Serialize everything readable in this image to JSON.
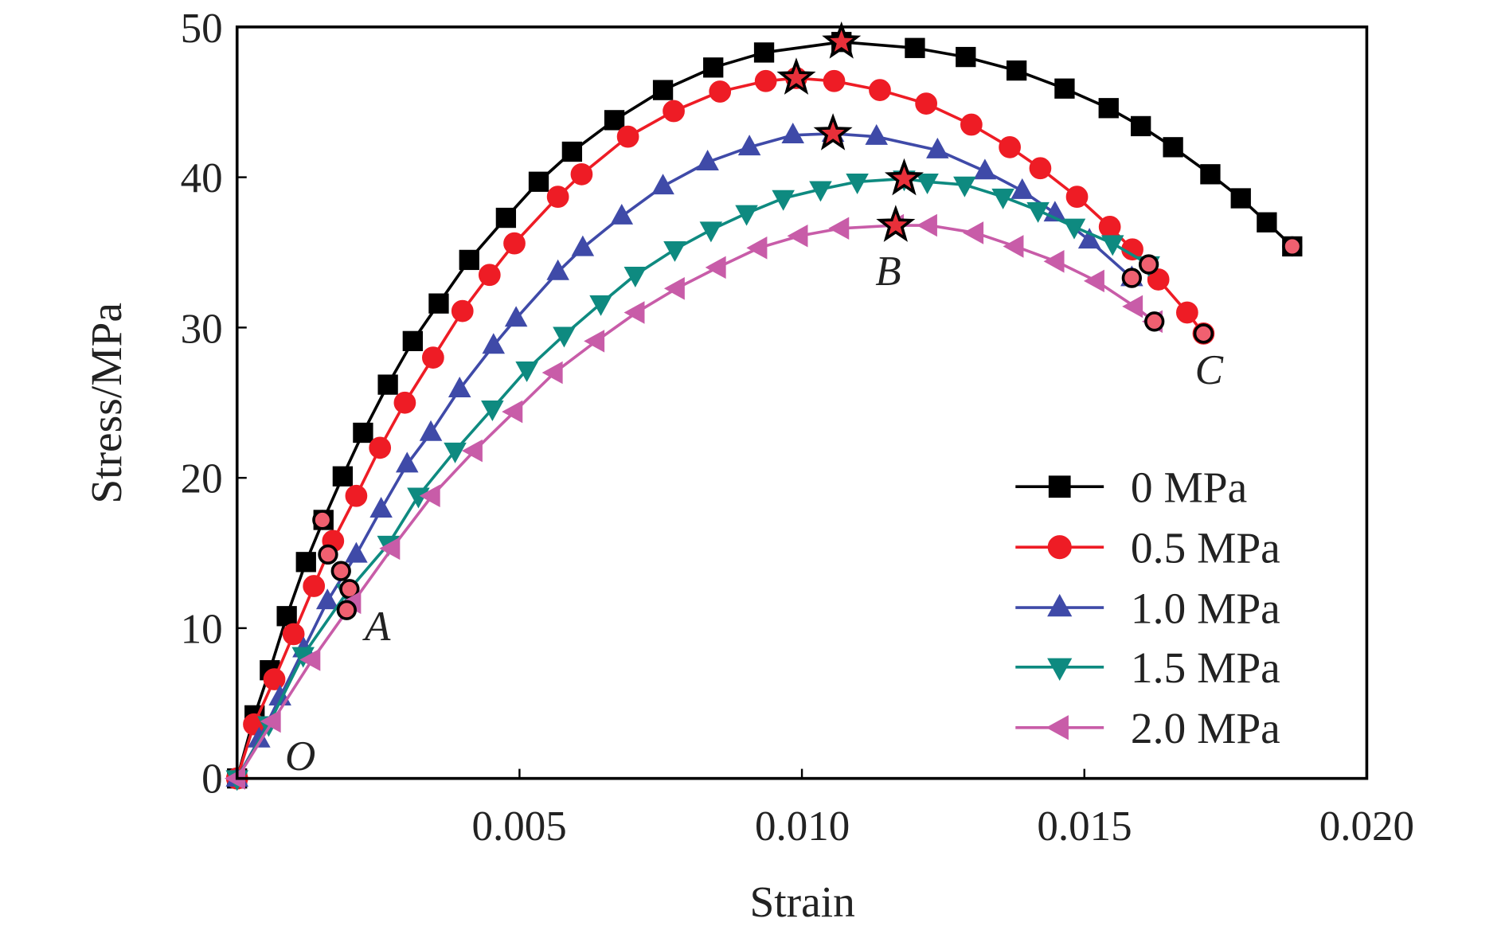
{
  "chart_data": {
    "type": "line",
    "xlabel": "Strain",
    "ylabel": "Stress/MPa",
    "xlim": [
      0,
      0.02
    ],
    "ylim": [
      0,
      50
    ],
    "xticks": [
      "0.005",
      "0.010",
      "0.015",
      "0.020"
    ],
    "xtick_values": [
      0.005,
      0.01,
      0.015,
      0.02
    ],
    "yticks": [
      "0",
      "10",
      "20",
      "30",
      "40",
      "50"
    ],
    "ytick_values": [
      0,
      10,
      20,
      30,
      40,
      50
    ],
    "grid": false,
    "legend_position": "bottom-right",
    "annotations": [
      {
        "text": "O",
        "x": 0.0012,
        "y": 1.5
      },
      {
        "text": "A",
        "x": 0.0026,
        "y": 10.2
      },
      {
        "text": "B",
        "x": 0.0116,
        "y": 33.6
      },
      {
        "text": "C",
        "x": 0.0173,
        "y": 27.0
      }
    ],
    "series": [
      {
        "name": "0 MPa",
        "color": "#000000",
        "marker": "square",
        "x": [
          0,
          0.00031,
          0.00058,
          0.00088,
          0.00122,
          0.00153,
          0.00187,
          0.00223,
          0.00267,
          0.00311,
          0.00357,
          0.00411,
          0.00476,
          0.00534,
          0.00593,
          0.00668,
          0.00754,
          0.00843,
          0.00933,
          0.0107,
          0.012,
          0.0129,
          0.0138,
          0.01465,
          0.01543,
          0.016,
          0.01657,
          0.01723,
          0.01777,
          0.01823,
          0.01868
        ],
        "y": [
          0,
          4.2,
          7.2,
          10.8,
          14.4,
          17.2,
          20.1,
          23.0,
          26.2,
          29.1,
          31.6,
          34.5,
          37.3,
          39.7,
          41.7,
          43.8,
          45.8,
          47.3,
          48.3,
          49.0,
          48.6,
          48.0,
          47.1,
          45.9,
          44.6,
          43.4,
          42.0,
          40.2,
          38.6,
          37.0,
          35.4
        ],
        "point_A": [
          0.00151,
          17.2
        ],
        "peak_B": [
          0.0107,
          49.0
        ],
        "end_C": [
          0.01868,
          35.4
        ]
      },
      {
        "name": "0.5 MPa",
        "color": "#ee1c25",
        "marker": "circle",
        "x": [
          0,
          0.0003,
          0.00066,
          0.001,
          0.00136,
          0.0017,
          0.00211,
          0.00253,
          0.00297,
          0.00347,
          0.00399,
          0.00447,
          0.00491,
          0.00568,
          0.0061,
          0.00692,
          0.00773,
          0.00855,
          0.00936,
          0.0099,
          0.01057,
          0.01138,
          0.0122,
          0.013,
          0.01368,
          0.01422,
          0.01487,
          0.01545,
          0.01585,
          0.01631,
          0.01682,
          0.01711
        ],
        "y": [
          0,
          3.6,
          6.6,
          9.6,
          12.8,
          15.8,
          18.8,
          22.0,
          25.0,
          28.0,
          31.1,
          33.5,
          35.6,
          38.7,
          40.2,
          42.7,
          44.4,
          45.7,
          46.4,
          46.6,
          46.4,
          45.8,
          44.9,
          43.5,
          42.0,
          40.6,
          38.7,
          36.7,
          35.2,
          33.2,
          31.0,
          29.6
        ],
        "point_A": [
          0.00161,
          14.9
        ],
        "peak_B": [
          0.0099,
          46.6
        ],
        "end_C": [
          0.01711,
          29.6
        ]
      },
      {
        "name": "1.0 MPa",
        "color": "#3f4aa8",
        "marker": "triangle-up",
        "x": [
          0,
          0.00039,
          0.00076,
          0.00118,
          0.0016,
          0.00211,
          0.00255,
          0.00301,
          0.00343,
          0.00394,
          0.00454,
          0.00494,
          0.00568,
          0.00612,
          0.00681,
          0.00754,
          0.00833,
          0.00907,
          0.00984,
          0.01055,
          0.01132,
          0.0124,
          0.01324,
          0.0139,
          0.01448,
          0.01509,
          0.01584
        ],
        "y": [
          0,
          2.6,
          5.4,
          8.6,
          11.8,
          14.9,
          17.9,
          20.9,
          23.0,
          25.9,
          28.8,
          30.6,
          33.7,
          35.3,
          37.4,
          39.4,
          41.0,
          42.0,
          42.8,
          42.9,
          42.7,
          41.8,
          40.4,
          39.1,
          37.6,
          35.8,
          33.3
        ],
        "point_A": [
          0.00184,
          13.8
        ],
        "peak_B": [
          0.01055,
          42.9
        ],
        "end_C": [
          0.01584,
          33.3
        ]
      },
      {
        "name": "1.5 MPa",
        "color": "#0e8a80",
        "marker": "triangle-down",
        "x": [
          0,
          0.00056,
          0.00117,
          0.00195,
          0.00268,
          0.00321,
          0.00386,
          0.00452,
          0.00513,
          0.00579,
          0.00644,
          0.00705,
          0.00775,
          0.00839,
          0.00902,
          0.00967,
          0.01033,
          0.01098,
          0.01181,
          0.01222,
          0.01288,
          0.01356,
          0.01418,
          0.01482,
          0.0155,
          0.01614
        ],
        "y": [
          0,
          3.6,
          8.2,
          12.4,
          15.6,
          18.8,
          21.8,
          24.6,
          27.2,
          29.5,
          31.6,
          33.5,
          35.2,
          36.5,
          37.6,
          38.6,
          39.2,
          39.7,
          39.9,
          39.7,
          39.5,
          38.7,
          37.8,
          36.7,
          35.6,
          34.2
        ],
        "point_A": [
          0.00199,
          12.6
        ],
        "peak_B": [
          0.01181,
          39.9
        ],
        "end_C": [
          0.01614,
          34.2
        ]
      },
      {
        "name": "2.0 MPa",
        "color": "#c85ca8",
        "marker": "triangle-left",
        "x": [
          0,
          0.00063,
          0.00133,
          0.00205,
          0.00274,
          0.00345,
          0.0042,
          0.00491,
          0.00562,
          0.00636,
          0.00707,
          0.00778,
          0.00851,
          0.00924,
          0.00996,
          0.01069,
          0.01166,
          0.01225,
          0.01307,
          0.01378,
          0.0145,
          0.01521,
          0.01589,
          0.01624
        ],
        "y": [
          0,
          3.8,
          7.9,
          11.7,
          15.3,
          18.8,
          21.8,
          24.4,
          27.0,
          29.1,
          31.0,
          32.6,
          34.0,
          35.3,
          36.1,
          36.6,
          36.8,
          36.8,
          36.3,
          35.4,
          34.4,
          33.1,
          31.4,
          30.4
        ],
        "point_A": [
          0.00194,
          11.2
        ],
        "peak_B": [
          0.01166,
          36.8
        ],
        "end_C": [
          0.01624,
          30.4
        ]
      }
    ]
  }
}
